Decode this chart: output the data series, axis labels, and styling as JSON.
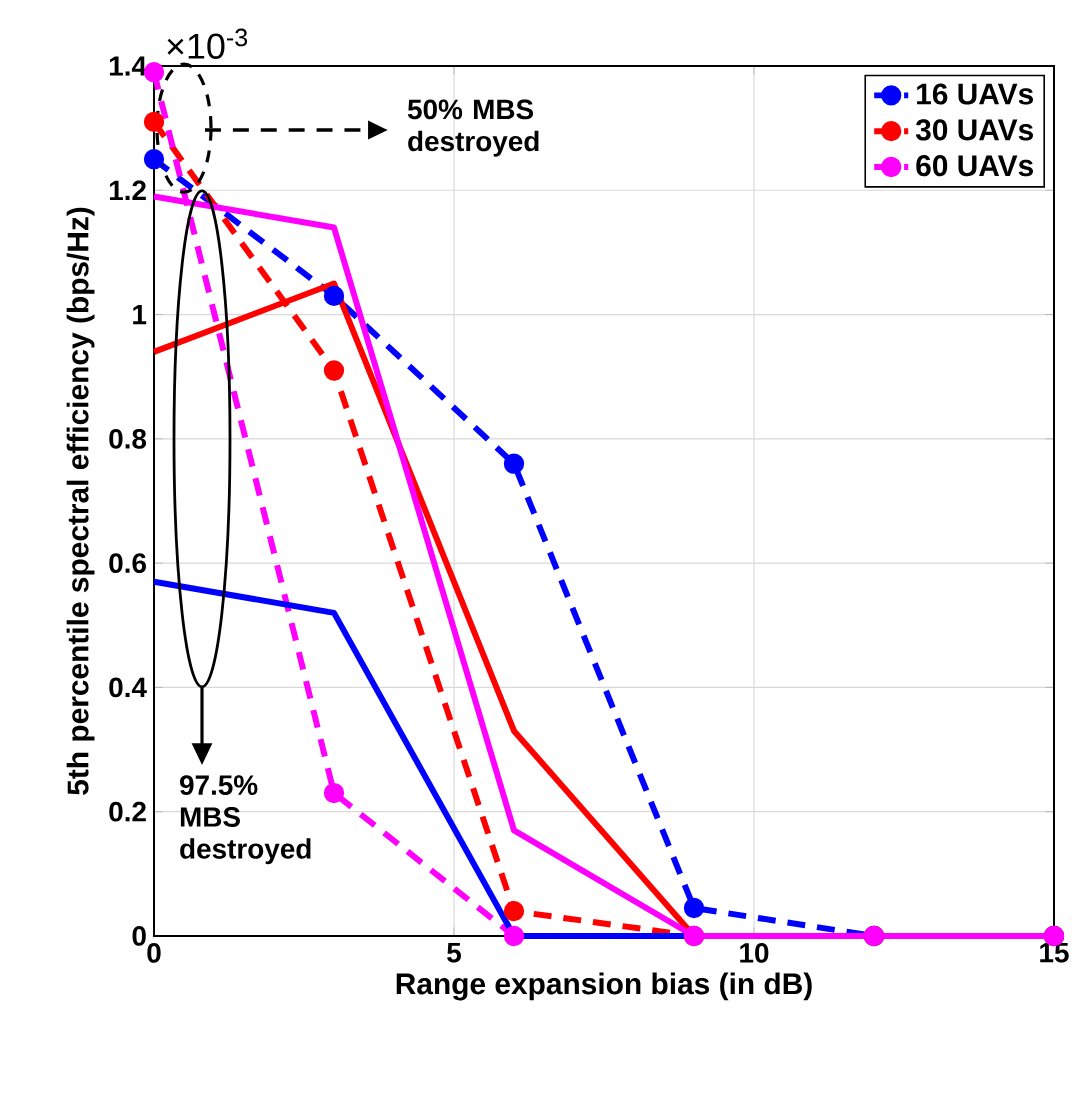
{
  "chart_data": {
    "type": "line",
    "xlabel": "Range expansion bias (in dB)",
    "ylabel": "5th percentile spectral efficiency (bps/Hz)",
    "x": [
      0,
      3,
      6,
      9,
      12,
      15
    ],
    "series": [
      {
        "name": "16 UAVs",
        "color": "#0000ff",
        "line_style": "dashed",
        "marker": "circle",
        "values": [
          1.25,
          1.03,
          0.76,
          0.045,
          0,
          0
        ]
      },
      {
        "name": "30 UAVs",
        "color": "#ff0000",
        "line_style": "dashed",
        "marker": "circle",
        "values": [
          1.31,
          0.91,
          0.04,
          0,
          0,
          0
        ]
      },
      {
        "name": "60 UAVs",
        "color": "#ff00ff",
        "line_style": "dashed",
        "marker": "circle",
        "values": [
          1.39,
          0.23,
          0,
          0,
          0,
          0
        ]
      },
      {
        "color": "#0000ff",
        "line_style": "solid",
        "marker": "none",
        "values": [
          0.57,
          0.52,
          0,
          0,
          0,
          0
        ]
      },
      {
        "color": "#ff0000",
        "line_style": "solid",
        "marker": "none",
        "values": [
          0.94,
          1.05,
          0.33,
          0,
          0,
          0
        ]
      },
      {
        "color": "#ff00ff",
        "line_style": "solid",
        "marker": "none",
        "values": [
          1.19,
          1.14,
          0.17,
          0,
          0,
          0
        ]
      }
    ],
    "xlim": [
      0,
      15
    ],
    "xticks": [
      0,
      5,
      10,
      15
    ],
    "ylim": [
      0,
      1.4
    ],
    "yticks": [
      0,
      0.2,
      0.4,
      0.6,
      0.8,
      1,
      1.2,
      1.4
    ],
    "grid": true,
    "legend": "top right",
    "annotations": [
      "×10$^{-3}$",
      "50% MBS destroyed",
      "97.5% MBS destroyed"
    ]
  }
}
